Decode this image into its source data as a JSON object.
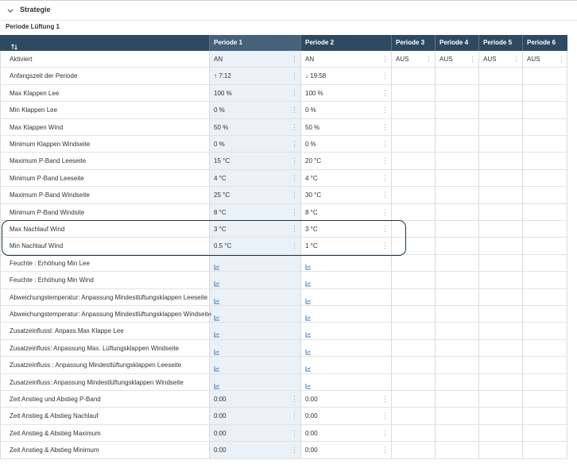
{
  "header": {
    "title": "Strategie"
  },
  "section": {
    "title": "Periode Lüftung 1"
  },
  "table": {
    "columns": [
      "Periode 1",
      "Periode 2",
      "Periode 3",
      "Periode 4",
      "Periode 5",
      "Periode 6"
    ],
    "rows": [
      {
        "label": "Aktiviert",
        "cells": [
          "AN",
          "AN",
          "AUS",
          "AUS",
          "AUS",
          "AUS"
        ]
      },
      {
        "label": "Anfangszeit der Periode",
        "cells": [
          "↑  7:12",
          "↓  19:58"
        ]
      },
      {
        "label": "Max Klappen Lee",
        "cells": [
          "100 %",
          "100 %"
        ]
      },
      {
        "label": "Min Klappen Lee",
        "cells": [
          "0 %",
          "0 %"
        ]
      },
      {
        "label": "Max Klappen Wind",
        "cells": [
          "50 %",
          "50 %"
        ]
      },
      {
        "label": "Minimum Klappen Windseite",
        "cells": [
          "0 %",
          "0 %"
        ]
      },
      {
        "label": "Maximum P-Band Leeseite",
        "cells": [
          "15 °C",
          "20 °C"
        ]
      },
      {
        "label": "Minimum P-Band Leeseite",
        "cells": [
          "4 °C",
          "4 °C"
        ]
      },
      {
        "label": "Maximum P-Band Windseite",
        "cells": [
          "25 °C",
          "30 °C"
        ]
      },
      {
        "label": "Minimum P-Band Windsite",
        "cells": [
          "8 °C",
          "8 °C"
        ]
      },
      {
        "label": "Max Nachlauf Wind",
        "cells": [
          "3 °C",
          "3 °C"
        ]
      },
      {
        "label": "Min Nachlauf Wind",
        "cells": [
          "0.5 °C",
          "1 °C"
        ]
      },
      {
        "label": "Feuchte : Erhöhung Min Lee",
        "cells": [
          null,
          null
        ]
      },
      {
        "label": "Feuchte : Erhöhung Min Wind",
        "cells": [
          null,
          null
        ]
      },
      {
        "label": "Abweichungstemperatur: Anpassung Mindestlüftungsklappen Leeseite",
        "cells": [
          null,
          null
        ]
      },
      {
        "label": "Abweichungstemperatur: Anpassung Mindestlüftungsklappen Windseite",
        "cells": [
          null,
          null
        ]
      },
      {
        "label": "Zusatzeinflussl: Anpass.Max Klappe Lee",
        "cells": [
          null,
          null
        ]
      },
      {
        "label": "Zusatzeinfluss: Anpassung Max. Lüftungsklappen Windseite",
        "cells": [
          null,
          null
        ]
      },
      {
        "label": "Zusatzeinfluss : Anpassung Mindestlüftungsklappen Leeseite",
        "cells": [
          null,
          null
        ]
      },
      {
        "label": "Zusatzeinfluss: Anpassung Mindestlüftungsklappen Windseite",
        "cells": [
          null,
          null
        ]
      },
      {
        "label": "Zeit Anstieg und Abstieg P-Band",
        "cells": [
          "0:00",
          "0:00"
        ]
      },
      {
        "label": "Zeit Anstieg & Abstieg Nachlauf",
        "cells": [
          "0:00",
          "0:00"
        ]
      },
      {
        "label": "Zeit Anstieg & Abstieg Maximum",
        "cells": [
          "0:00",
          "0:00"
        ]
      },
      {
        "label": "Zeit Anstieg & Abstieg Minimum",
        "cells": [
          "0:00",
          "0:00"
        ]
      }
    ],
    "highlighted_rows": [
      10,
      11
    ]
  }
}
